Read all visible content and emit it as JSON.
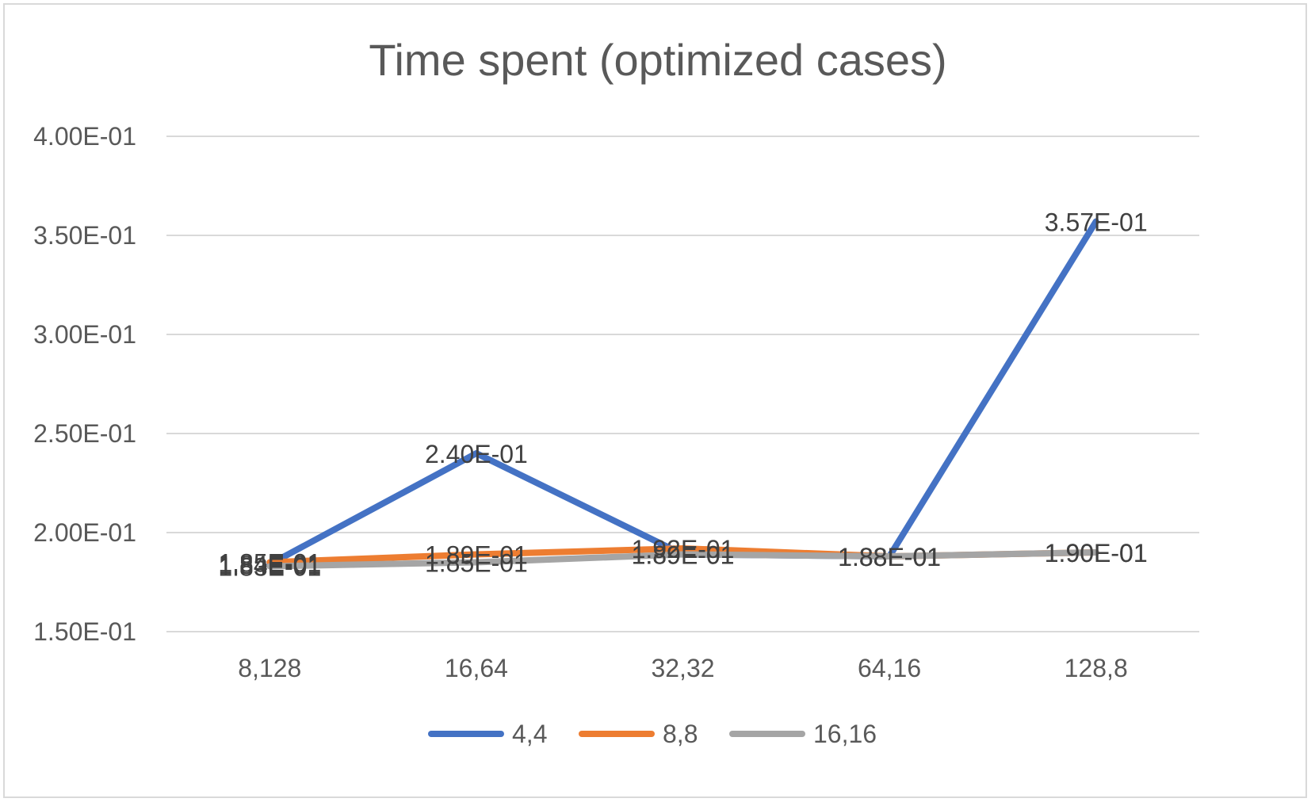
{
  "chart_data": {
    "type": "line",
    "title": "Time spent (optimized cases)",
    "xlabel": "",
    "ylabel": "",
    "categories": [
      "8,128",
      "16,64",
      "32,32",
      "64,16",
      "128,8"
    ],
    "ylim": [
      0.15,
      0.4
    ],
    "yticks": [
      0.15,
      0.2,
      0.25,
      0.3,
      0.35,
      0.4
    ],
    "ytick_labels": [
      "1.50E-01",
      "2.00E-01",
      "2.50E-01",
      "3.00E-01",
      "3.50E-01",
      "4.00E-01"
    ],
    "grid": true,
    "legend_position": "bottom",
    "series": [
      {
        "name": "4,4",
        "color": "#4472C4",
        "values": [
          0.184,
          0.24,
          0.189,
          0.188,
          0.357
        ],
        "labels": [
          "1.84E-01",
          "2.40E-01",
          "1.89E-01",
          "1.88E-01",
          "3.57E-01"
        ]
      },
      {
        "name": "8,8",
        "color": "#ED7D31",
        "values": [
          0.185,
          0.189,
          0.192,
          0.188,
          0.19
        ],
        "labels": [
          "1.85E-01",
          "1.89E-01",
          "1.92E-01",
          "1.88E-01",
          "1.90E-01"
        ]
      },
      {
        "name": "16,16",
        "color": "#A5A5A5",
        "values": [
          0.183,
          0.185,
          0.189,
          0.188,
          0.19
        ],
        "labels": [
          "1.83E-01",
          "1.85E-01",
          "1.89E-01",
          "1.88E-01",
          "1.90E-01"
        ]
      }
    ]
  }
}
